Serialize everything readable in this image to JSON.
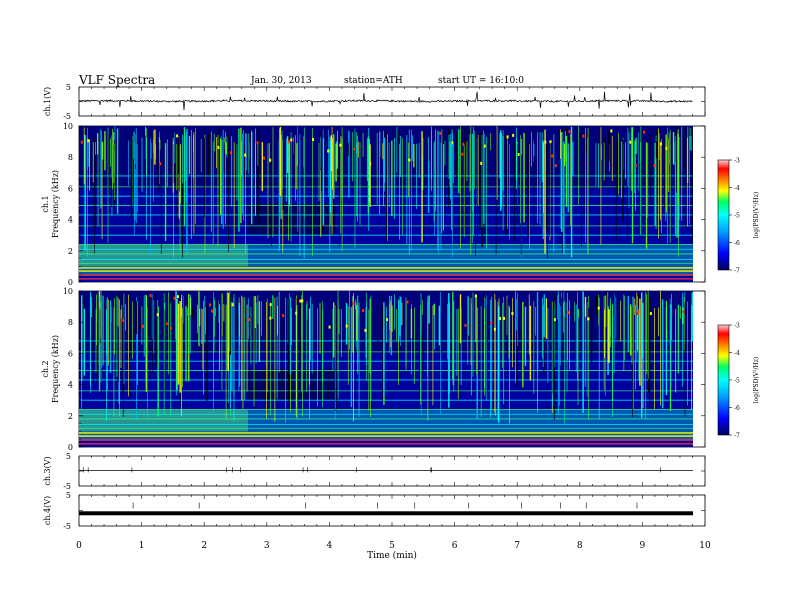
{
  "header": {
    "title": "VLF Spectra",
    "date": "Jan. 30, 2013",
    "station": "station=ATH",
    "start": "start UT = 16:10:0"
  },
  "colors": {
    "colormap": [
      "#000080",
      "#0000ff",
      "#0080ff",
      "#00ffff",
      "#00ff80",
      "#ffff00",
      "#ff8000",
      "#ff0000",
      "#ffffff"
    ],
    "trace": "#000000",
    "frame": "#000000"
  },
  "chart_data": [
    {
      "type": "line",
      "ylabel": "ch.1(V)",
      "ylim": [
        -5,
        5
      ],
      "ytick_labels": [
        "5",
        "-5"
      ],
      "description_level": 0.1
    },
    {
      "type": "heatmap",
      "ylabel": "Frequency (kHz)",
      "channel_label": "ch.1",
      "ylim": [
        0,
        10
      ],
      "ytick_labels": [
        "0",
        "2",
        "4",
        "6",
        "8",
        "10"
      ],
      "colorbar": {
        "label": "log(PSD(V²/Hz)",
        "range": [
          -7,
          -3
        ],
        "tick_labels": [
          "-3",
          "-4",
          "-5",
          "-6",
          "-7"
        ]
      }
    },
    {
      "type": "heatmap",
      "ylabel": "Frequency (kHz)",
      "channel_label": "ch.2",
      "ylim": [
        0,
        10
      ],
      "ytick_labels": [
        "0",
        "2",
        "4",
        "6",
        "8",
        "10"
      ],
      "colorbar": {
        "label": "log(PSD(V²/Hz)",
        "range": [
          -7,
          -3
        ],
        "tick_labels": [
          "-3",
          "-4",
          "-5",
          "-6",
          "-7"
        ]
      }
    },
    {
      "type": "line",
      "ylabel": "ch.3(V)",
      "ylim": [
        -5,
        5
      ],
      "ytick_labels": [
        "5",
        "-5"
      ]
    },
    {
      "type": "line",
      "ylabel": "ch.4(V)",
      "ylim": [
        -5,
        5
      ],
      "ytick_labels": [
        "5",
        "-5"
      ]
    }
  ],
  "xaxis": {
    "label": "Time (min)",
    "range": [
      0,
      10
    ],
    "tick_labels": [
      "0",
      "1",
      "2",
      "3",
      "4",
      "5",
      "6",
      "7",
      "8",
      "9",
      "10"
    ]
  }
}
